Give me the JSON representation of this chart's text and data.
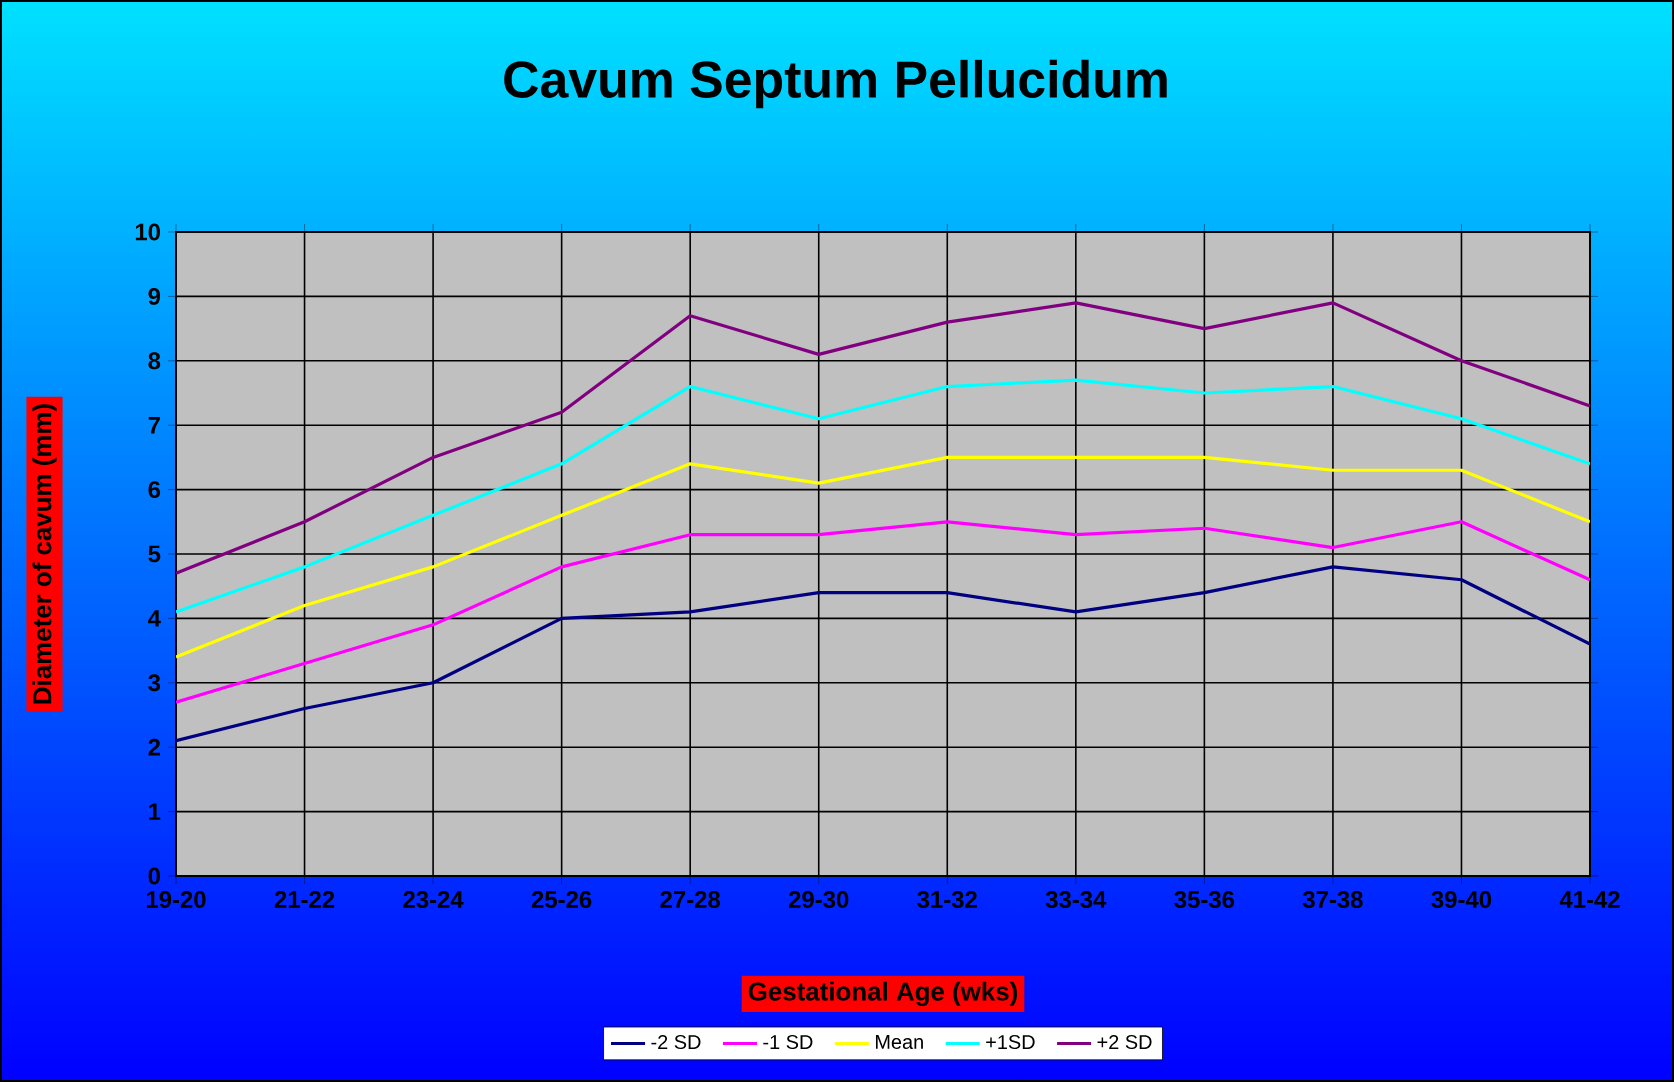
{
  "chart_data": {
    "type": "line",
    "title": "Cavum Septum Pellucidum",
    "xlabel": "Gestational Age (wks)",
    "ylabel": "Diameter of cavum (mm)",
    "categories": [
      "19-20",
      "21-22",
      "23-24",
      "25-26",
      "27-28",
      "29-30",
      "31-32",
      "33-34",
      "35-36",
      "37-38",
      "39-40",
      "41-42"
    ],
    "series": [
      {
        "name": "-2 SD",
        "color": "#000080",
        "values": [
          2.1,
          2.6,
          3.0,
          4.0,
          4.1,
          4.4,
          4.4,
          4.1,
          4.4,
          4.8,
          4.6,
          3.6
        ]
      },
      {
        "name": "-1 SD",
        "color": "#ff00ff",
        "values": [
          2.7,
          3.3,
          3.9,
          4.8,
          5.3,
          5.3,
          5.5,
          5.3,
          5.4,
          5.1,
          5.5,
          4.6
        ]
      },
      {
        "name": "Mean",
        "color": "#ffff00",
        "values": [
          3.4,
          4.2,
          4.8,
          5.6,
          6.4,
          6.1,
          6.5,
          6.5,
          6.5,
          6.3,
          6.3,
          5.5
        ]
      },
      {
        "name": "+1SD",
        "color": "#00ffff",
        "values": [
          4.1,
          4.8,
          5.6,
          6.4,
          7.6,
          7.1,
          7.6,
          7.7,
          7.5,
          7.6,
          7.1,
          6.4
        ]
      },
      {
        "name": "+2 SD",
        "color": "#800080",
        "values": [
          4.7,
          5.5,
          6.5,
          7.2,
          8.7,
          8.1,
          8.6,
          8.9,
          8.5,
          8.9,
          8.0,
          7.3
        ]
      }
    ],
    "ylim": [
      0,
      10
    ],
    "yticks": [
      0,
      1,
      2,
      3,
      4,
      5,
      6,
      7,
      8,
      9,
      10
    ],
    "grid": true,
    "legend": "bottom",
    "marker": "none",
    "line_style": "solid"
  }
}
